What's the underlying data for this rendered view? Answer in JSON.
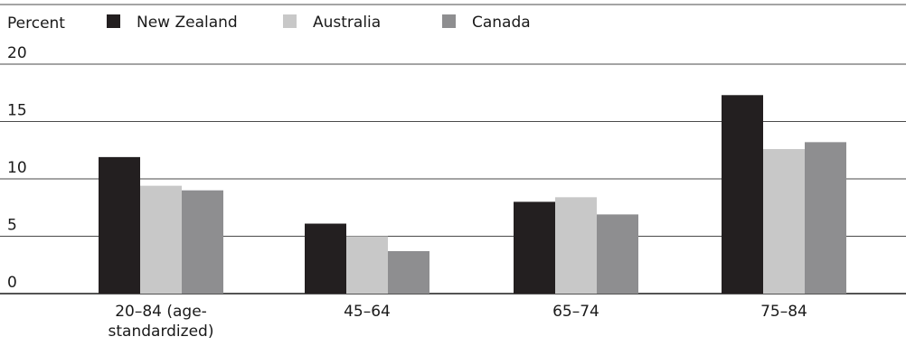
{
  "chart_data": {
    "type": "bar",
    "ylabel": "Percent",
    "ylim": [
      0,
      20
    ],
    "yticks": [
      "0",
      "5",
      "10",
      "15",
      "20"
    ],
    "categories": [
      "20–84 (age-standardized)",
      "45–64",
      "65–74",
      "75–84"
    ],
    "category_lines": [
      [
        "20–84 (age-",
        "standardized)"
      ],
      [
        "45–64"
      ],
      [
        "65–74"
      ],
      [
        "75–84"
      ]
    ],
    "series": [
      {
        "name": "New Zealand",
        "color": "#231f20",
        "values": [
          11.9,
          6.1,
          8.0,
          17.3
        ]
      },
      {
        "name": "Australia",
        "color": "#c8c8c8",
        "values": [
          9.4,
          5.0,
          8.4,
          12.6
        ]
      },
      {
        "name": "Canada",
        "color": "#8e8e90",
        "values": [
          9.0,
          3.7,
          6.9,
          13.2
        ]
      }
    ],
    "legend_position": "top",
    "grid": true
  }
}
